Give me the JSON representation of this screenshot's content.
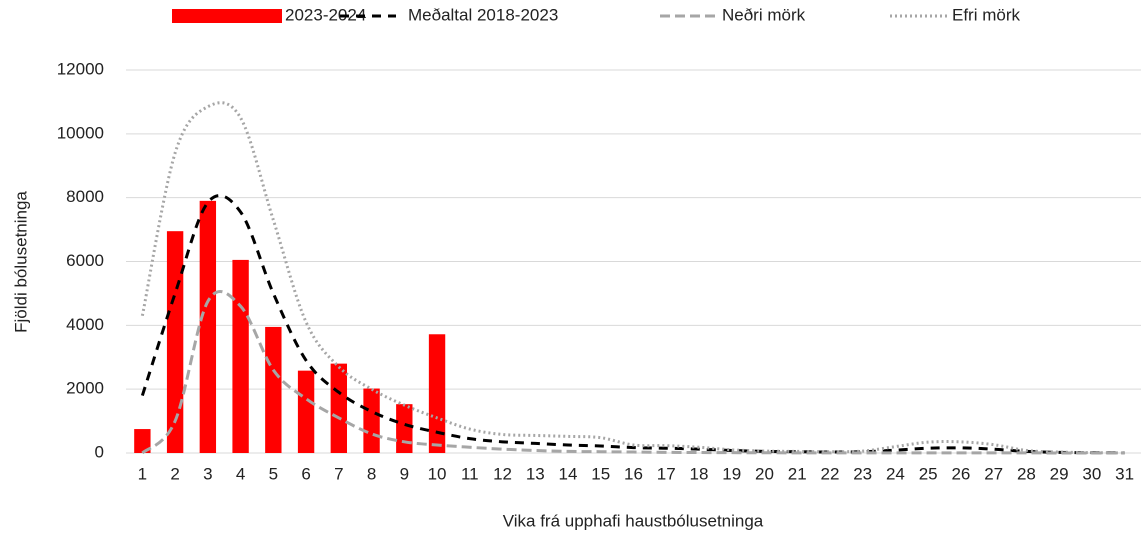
{
  "chart_data": {
    "type": "bar_line",
    "x_label": "Vika frá upphafi haustbólusetninga",
    "y_label": "Fjöldi bólusetninga",
    "categories": [
      1,
      2,
      3,
      4,
      5,
      6,
      7,
      8,
      9,
      10,
      11,
      12,
      13,
      14,
      15,
      16,
      17,
      18,
      19,
      20,
      21,
      22,
      23,
      24,
      25,
      26,
      27,
      28,
      29,
      30,
      31
    ],
    "ylim": [
      0,
      12000
    ],
    "yticks": [
      0,
      2000,
      4000,
      6000,
      8000,
      10000,
      12000
    ],
    "grid": true,
    "legend": "top",
    "series": [
      {
        "name": "2023-2024",
        "type": "bar",
        "color": "#ff0000",
        "values": [
          750,
          6950,
          7900,
          6050,
          3950,
          2580,
          2800,
          2020,
          1530,
          3720,
          null,
          null,
          null,
          null,
          null,
          null,
          null,
          null,
          null,
          null,
          null,
          null,
          null,
          null,
          null,
          null,
          null,
          null,
          null,
          null,
          null
        ]
      },
      {
        "name": "Meðaltal 2018-2023",
        "type": "line",
        "style": "dashed",
        "color": "#000000",
        "values": [
          1800,
          5000,
          7850,
          7550,
          5000,
          2900,
          1900,
          1300,
          900,
          650,
          450,
          350,
          300,
          250,
          220,
          170,
          150,
          120,
          80,
          50,
          40,
          30,
          40,
          90,
          150,
          160,
          120,
          50,
          20,
          10,
          5
        ]
      },
      {
        "name": "Neðri mörk",
        "type": "line",
        "style": "dashed",
        "color": "#a6a6a6",
        "values": [
          0,
          1000,
          4750,
          4600,
          2600,
          1700,
          1100,
          600,
          350,
          250,
          180,
          120,
          80,
          50,
          40,
          30,
          20,
          15,
          10,
          8,
          5,
          5,
          5,
          5,
          5,
          5,
          5,
          5,
          0,
          0,
          0
        ]
      },
      {
        "name": "Efri mörk",
        "type": "line",
        "style": "dotted",
        "color": "#a6a6a6",
        "values": [
          4300,
          9400,
          10850,
          10500,
          7300,
          4100,
          2700,
          2000,
          1500,
          1100,
          750,
          580,
          550,
          520,
          480,
          250,
          230,
          180,
          100,
          60,
          50,
          40,
          60,
          200,
          340,
          350,
          260,
          80,
          30,
          10,
          5
        ]
      }
    ]
  }
}
